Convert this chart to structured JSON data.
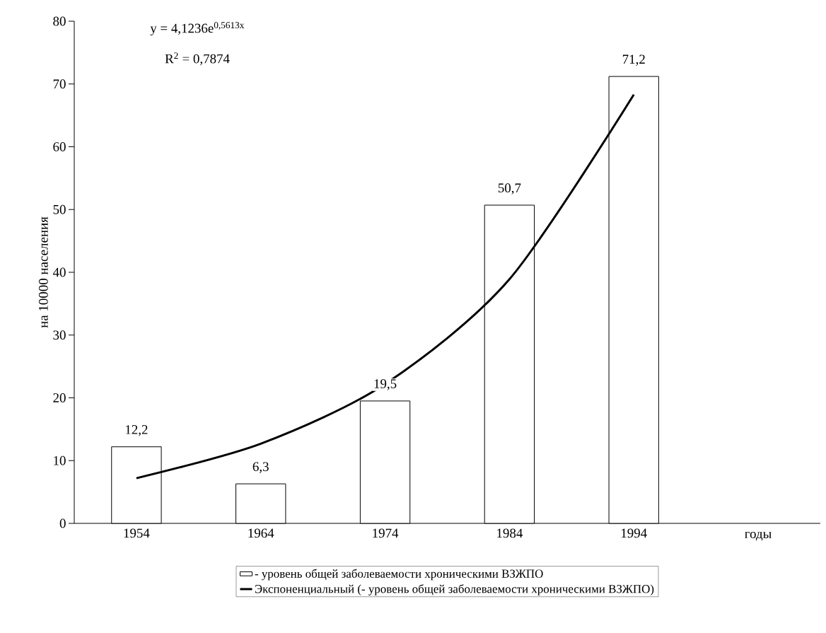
{
  "chart_data": {
    "type": "bar",
    "ylabel": "на 10000 населения",
    "xlabel": "годы",
    "categories": [
      "1954",
      "1964",
      "1974",
      "1984",
      "1994",
      null
    ],
    "series": [
      {
        "name": "- уровень общей заболеваемости хроническими ВЗЖПО",
        "color": "#ffffff",
        "values": [
          12.2,
          6.3,
          19.5,
          50.7,
          71.2,
          null
        ],
        "value_labels": [
          "12,2",
          "6,3",
          "19,5",
          "50,7",
          "71,2",
          null
        ]
      },
      {
        "name": "Экспоненциальный (- уровень общей заболеваемости хроническими ВЗЖПО)",
        "type": "line",
        "color": "#000000",
        "values": [
          7.2,
          12.7,
          22.2,
          38.9,
          68.3,
          null
        ]
      }
    ],
    "ylim": [
      0,
      80
    ],
    "yticks": [
      0,
      10,
      20,
      30,
      40,
      50,
      60,
      70,
      80
    ],
    "annotations": [
      "y = 4,1236e$^{0,5613x}$",
      "R$^{2}$ = 0,7874"
    ],
    "grid": false,
    "legend": "bottom",
    "marker": "none",
    "line_style": "solid"
  }
}
